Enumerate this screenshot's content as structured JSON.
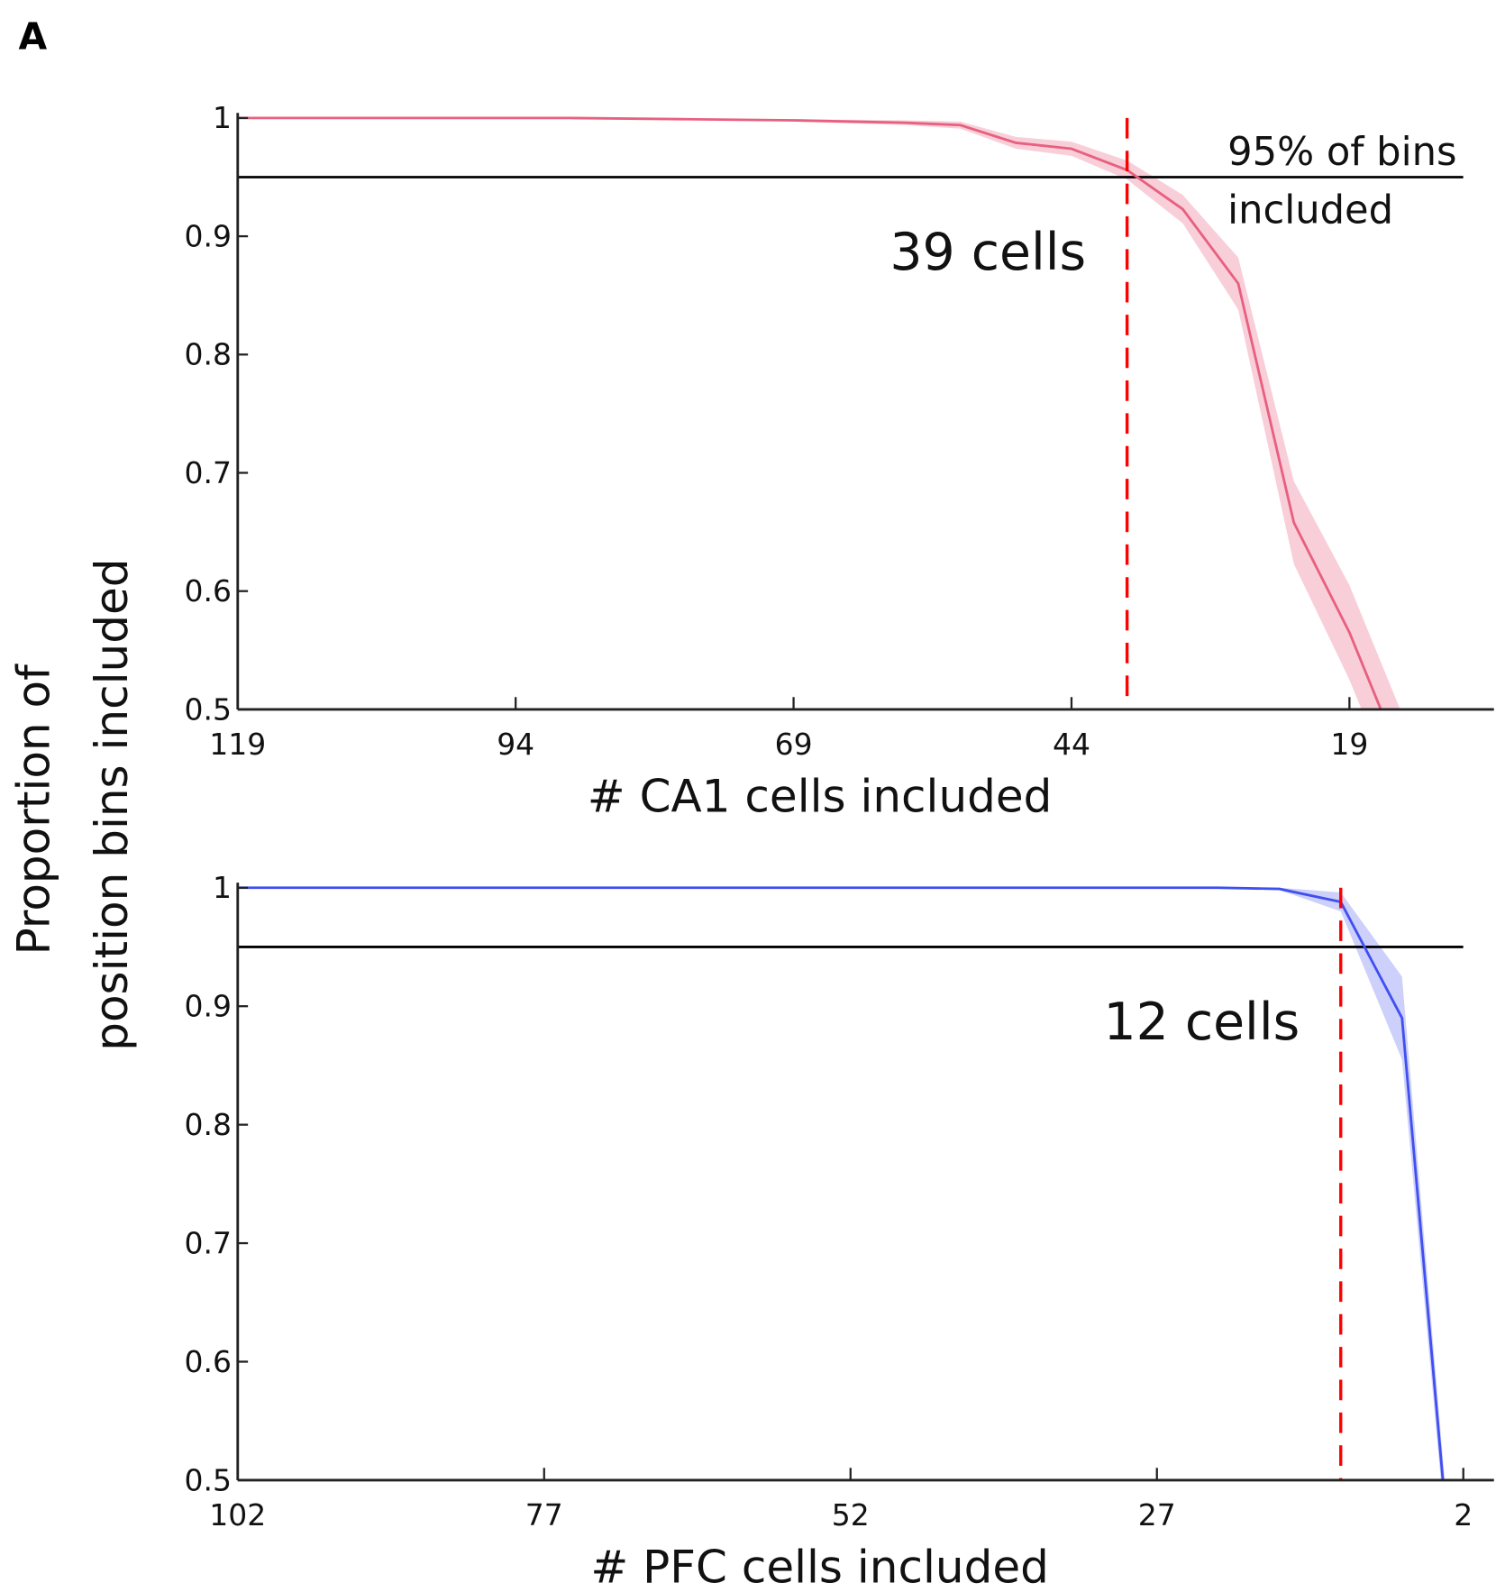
{
  "panel_label": "A",
  "y_label_lines": [
    "Proportion of",
    "position bins included"
  ],
  "colors": {
    "threshold_line": "#000000",
    "cutoff_dashed": "#ff0000"
  },
  "chart_data": [
    {
      "type": "line",
      "xlabel": "# CA1 cells included",
      "ylabel": "Proportion of position bins included",
      "xlim": [
        119,
        6
      ],
      "ylim": [
        0.5,
        1
      ],
      "x_reversed": true,
      "xticks": [
        119,
        94,
        69,
        44,
        19
      ],
      "yticks": [
        0.5,
        0.6,
        0.7,
        0.8,
        0.9,
        1
      ],
      "ytick_labels": [
        "0.5",
        "0.6",
        "0.7",
        "0.8",
        "0.9",
        "1"
      ],
      "grid": false,
      "series": [
        {
          "color": "#e8607f",
          "band_color": "#f8cfd9",
          "x": [
            119,
            109,
            99,
            89,
            79,
            69,
            59,
            54,
            49,
            44,
            39,
            34,
            29,
            24,
            19,
            14
          ],
          "y": [
            1.0,
            1.0,
            1.0,
            1.0,
            0.999,
            0.998,
            0.996,
            0.994,
            0.979,
            0.974,
            0.956,
            0.923,
            0.86,
            0.658,
            0.565,
            0.45
          ],
          "err": [
            0,
            0,
            0,
            0,
            0,
            0.001,
            0.002,
            0.003,
            0.005,
            0.006,
            0.008,
            0.012,
            0.022,
            0.035,
            0.04,
            0.04
          ]
        }
      ],
      "threshold": {
        "y": 0.95,
        "label_lines": [
          "95% of bins",
          "included"
        ]
      },
      "cutoff": {
        "x": 39,
        "label": "39 cells"
      }
    },
    {
      "type": "line",
      "xlabel": "# PFC cells included",
      "ylabel": "Proportion of position bins included",
      "xlim": [
        102,
        -0.5
      ],
      "ylim": [
        0.5,
        1
      ],
      "x_reversed": true,
      "xticks": [
        102,
        77,
        52,
        27,
        2
      ],
      "yticks": [
        0.5,
        0.6,
        0.7,
        0.8,
        0.9,
        1
      ],
      "ytick_labels": [
        "0.5",
        "0.6",
        "0.7",
        "0.8",
        "0.9",
        "1"
      ],
      "grid": false,
      "series": [
        {
          "color": "#4050f0",
          "band_color": "#cdd0fa",
          "x": [
            102,
            77,
            52,
            27,
            22,
            17,
            12,
            7,
            2
          ],
          "y": [
            1.0,
            1.0,
            1.0,
            1.0,
            1.0,
            0.999,
            0.988,
            0.89,
            0.305
          ],
          "err": [
            0,
            0,
            0,
            0,
            0,
            0.001,
            0.008,
            0.035,
            0.01
          ]
        }
      ],
      "threshold": {
        "y": 0.95,
        "label_lines": []
      },
      "cutoff": {
        "x": 12,
        "label": "12 cells"
      }
    }
  ]
}
